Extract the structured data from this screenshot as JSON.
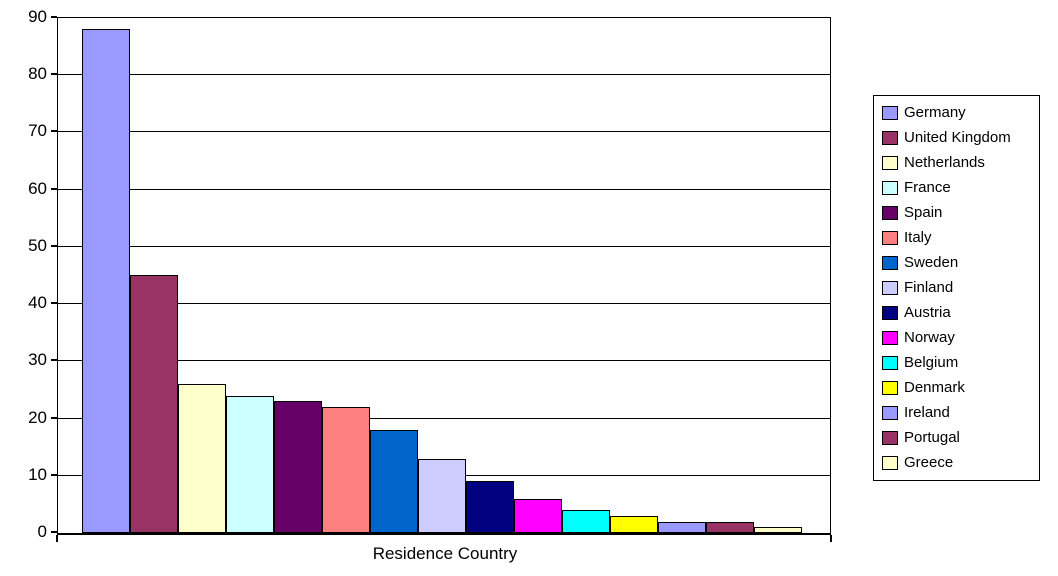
{
  "chart_data": {
    "type": "bar",
    "title": "",
    "xlabel": "Residence Country",
    "ylabel": "",
    "ylim": [
      0,
      90
    ],
    "ytick_step": 10,
    "yticks": [
      90,
      80,
      70,
      60,
      50,
      40,
      30,
      20,
      10,
      0
    ],
    "grid": "horizontal",
    "gridline_color": "#000000",
    "bar_border_color": "#000000",
    "background_color": "#FFFFFF",
    "legend_position": "right",
    "categories": [
      "Residence Country"
    ],
    "series": [
      {
        "name": "Germany",
        "value": 88,
        "color": "#9999FF"
      },
      {
        "name": "United Kingdom",
        "value": 45,
        "color": "#993366"
      },
      {
        "name": "Netherlands",
        "value": 26,
        "color": "#FFFFCC"
      },
      {
        "name": "France",
        "value": 24,
        "color": "#CCFFFF"
      },
      {
        "name": "Spain",
        "value": 23,
        "color": "#660066"
      },
      {
        "name": "Italy",
        "value": 22,
        "color": "#FF8080"
      },
      {
        "name": "Sweden",
        "value": 18,
        "color": "#0066CC"
      },
      {
        "name": "Finland",
        "value": 13,
        "color": "#CCCCFF"
      },
      {
        "name": "Austria",
        "value": 9,
        "color": "#000080"
      },
      {
        "name": "Norway",
        "value": 6,
        "color": "#FF00FF"
      },
      {
        "name": "Belgium",
        "value": 4,
        "color": "#00FFFF"
      },
      {
        "name": "Denmark",
        "value": 3,
        "color": "#FFFF00"
      },
      {
        "name": "Ireland",
        "value": 2,
        "color": "#9999FF"
      },
      {
        "name": "Portugal",
        "value": 2,
        "color": "#993366"
      },
      {
        "name": "Greece",
        "value": 1,
        "color": "#FFFFCC"
      }
    ]
  }
}
